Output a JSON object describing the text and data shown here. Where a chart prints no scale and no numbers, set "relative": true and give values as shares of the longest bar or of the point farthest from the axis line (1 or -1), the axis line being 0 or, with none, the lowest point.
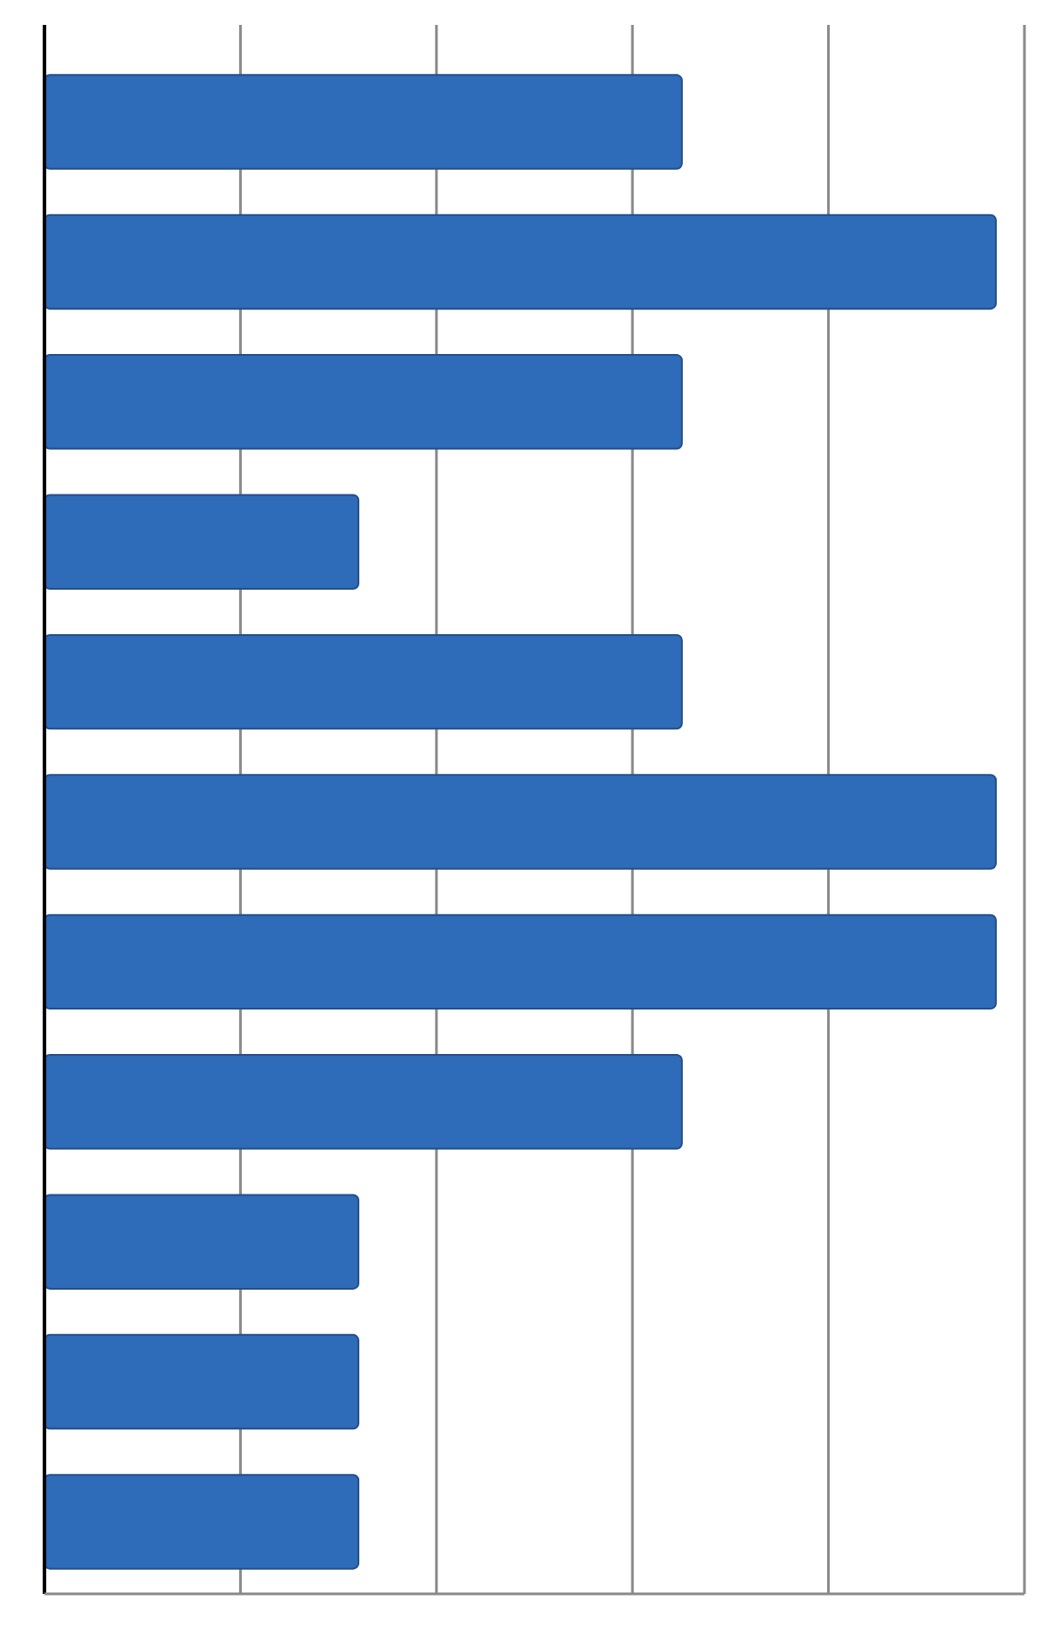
{
  "chart_data": {
    "type": "bar",
    "orientation": "horizontal",
    "relative": true,
    "categories": [
      null,
      null,
      null,
      null,
      null,
      null,
      null,
      null,
      null,
      null,
      null
    ],
    "values": [
      0.67,
      1,
      0.67,
      0.33,
      0.67,
      1,
      1,
      0.67,
      0.33,
      0.33,
      0.33
    ],
    "color": "#2e6bb9",
    "grid": "x"
  }
}
